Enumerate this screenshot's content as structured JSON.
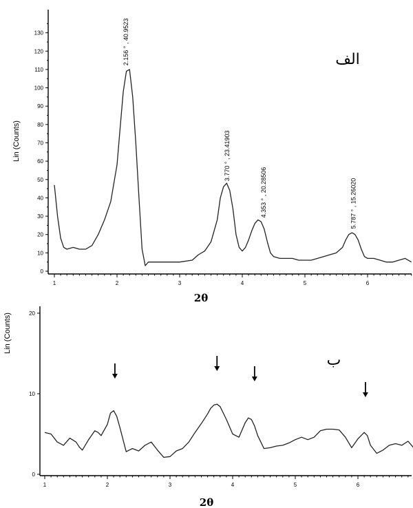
{
  "chart_data": [
    {
      "type": "line",
      "panel_label": "الف",
      "xlabel": "2θ",
      "ylabel": "Lin (Counts)",
      "xlim": [
        1,
        6.7
      ],
      "ylim": [
        0,
        140
      ],
      "xticks": [
        "1",
        "2",
        "3",
        "4",
        "5",
        "6"
      ],
      "yticks": [
        "0",
        "10",
        "20",
        "30",
        "40",
        "50",
        "60",
        "70",
        "80",
        "90",
        "100",
        "110",
        "120",
        "130"
      ],
      "annotations": [
        {
          "text": "2.156 ° , 40.9523",
          "x": 2.156,
          "y": 111
        },
        {
          "text": "3.770 ° , 23.41903",
          "x": 3.77,
          "y": 48
        },
        {
          "text": "4.353 ° , 20.28506",
          "x": 4.353,
          "y": 28
        },
        {
          "text": "5.787 ° , 15.26020",
          "x": 5.787,
          "y": 22
        }
      ],
      "series": [
        {
          "x": [
            1.0,
            1.05,
            1.1,
            1.15,
            1.2,
            1.3,
            1.4,
            1.5,
            1.6,
            1.7,
            1.8,
            1.9,
            2.0,
            2.05,
            2.1,
            2.15,
            2.2,
            2.25,
            2.3,
            2.35,
            2.4,
            2.45,
            2.5,
            2.55,
            2.6,
            2.8,
            3.0,
            3.2,
            3.3,
            3.4,
            3.5,
            3.6,
            3.65,
            3.7,
            3.75,
            3.8,
            3.85,
            3.9,
            3.95,
            4.0,
            4.05,
            4.1,
            4.15,
            4.2,
            4.25,
            4.3,
            4.35,
            4.4,
            4.45,
            4.5,
            4.6,
            4.7,
            4.8,
            4.9,
            5.0,
            5.1,
            5.2,
            5.3,
            5.4,
            5.5,
            5.6,
            5.65,
            5.7,
            5.75,
            5.8,
            5.85,
            5.9,
            5.95,
            6.0,
            6.1,
            6.2,
            6.3,
            6.4,
            6.5,
            6.6,
            6.7
          ],
          "y": [
            47,
            30,
            18,
            13,
            12,
            13,
            12,
            12,
            14,
            20,
            28,
            38,
            58,
            78,
            98,
            109,
            110,
            95,
            70,
            40,
            12,
            3,
            5,
            5,
            5,
            5,
            5,
            6,
            9,
            11,
            16,
            28,
            40,
            46,
            48,
            44,
            34,
            20,
            13,
            11,
            13,
            17,
            22,
            26,
            28,
            27,
            23,
            16,
            10,
            8,
            7,
            7,
            7,
            6,
            6,
            6,
            7,
            8,
            9,
            10,
            13,
            17,
            20,
            21,
            20,
            17,
            12,
            8,
            7,
            7,
            6,
            5,
            5,
            6,
            7,
            5
          ]
        }
      ]
    },
    {
      "type": "line",
      "panel_label": "ب",
      "xlabel": "2θ",
      "ylabel": "Lin (Counts)",
      "xlim": [
        1,
        6.9
      ],
      "ylim": [
        0,
        20
      ],
      "xticks": [
        "1",
        "2",
        "3",
        "4",
        "5",
        "6"
      ],
      "yticks": [
        "0",
        "10",
        "20"
      ],
      "arrows_x": [
        2.12,
        3.75,
        4.35,
        6.12
      ],
      "series": [
        {
          "x": [
            1.0,
            1.1,
            1.2,
            1.3,
            1.4,
            1.5,
            1.55,
            1.6,
            1.7,
            1.8,
            1.85,
            1.9,
            2.0,
            2.05,
            2.1,
            2.15,
            2.2,
            2.3,
            2.4,
            2.5,
            2.6,
            2.7,
            2.8,
            2.9,
            3.0,
            3.1,
            3.2,
            3.3,
            3.4,
            3.5,
            3.6,
            3.65,
            3.7,
            3.75,
            3.8,
            3.85,
            3.9,
            4.0,
            4.1,
            4.2,
            4.25,
            4.3,
            4.35,
            4.4,
            4.5,
            4.6,
            4.7,
            4.8,
            4.9,
            5.0,
            5.1,
            5.2,
            5.3,
            5.4,
            5.5,
            5.6,
            5.7,
            5.8,
            5.9,
            6.0,
            6.1,
            6.15,
            6.2,
            6.3,
            6.4,
            6.5,
            6.6,
            6.7,
            6.8,
            6.9
          ],
          "y": [
            5.2,
            5.0,
            4.0,
            3.6,
            4.5,
            4.0,
            3.4,
            3.0,
            4.3,
            5.4,
            5.2,
            4.8,
            6.2,
            7.6,
            7.9,
            7.2,
            5.8,
            2.8,
            3.2,
            2.9,
            3.6,
            4.0,
            3.0,
            2.1,
            2.2,
            2.9,
            3.2,
            4.0,
            5.2,
            6.3,
            7.5,
            8.2,
            8.6,
            8.7,
            8.4,
            7.6,
            6.8,
            5.0,
            4.6,
            6.4,
            7.0,
            6.8,
            6.0,
            4.8,
            3.2,
            3.3,
            3.5,
            3.6,
            3.9,
            4.3,
            4.6,
            4.3,
            4.6,
            5.4,
            5.6,
            5.6,
            5.5,
            4.6,
            3.3,
            4.4,
            5.2,
            4.8,
            3.6,
            2.6,
            3.0,
            3.6,
            3.8,
            3.6,
            4.1,
            3.2
          ]
        }
      ]
    }
  ]
}
